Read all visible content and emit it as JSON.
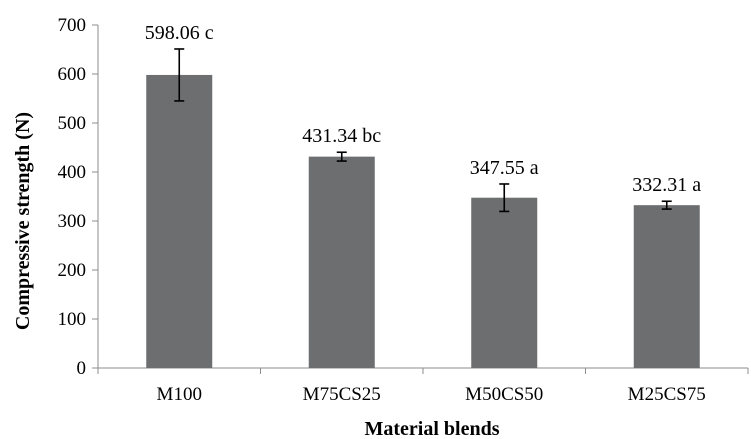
{
  "chart_data": {
    "type": "bar",
    "xlabel": "Material blends",
    "ylabel": "Compressive strength (N)",
    "ylim": [
      0,
      700
    ],
    "yticks": [
      0,
      100,
      200,
      300,
      400,
      500,
      600,
      700
    ],
    "grid": false,
    "categories": [
      "M100",
      "M75CS25",
      "M50CS50",
      "M25CS75"
    ],
    "values": [
      598.06,
      431.34,
      347.55,
      332.31
    ],
    "errors": [
      53,
      9,
      28,
      8
    ],
    "data_labels": [
      "598.06 c",
      "431.34 bc",
      "347.55 a",
      "332.31 a"
    ],
    "colors": {
      "bar": "#6d6e70",
      "axis": "#8c8c8c",
      "error": "#000000"
    }
  }
}
